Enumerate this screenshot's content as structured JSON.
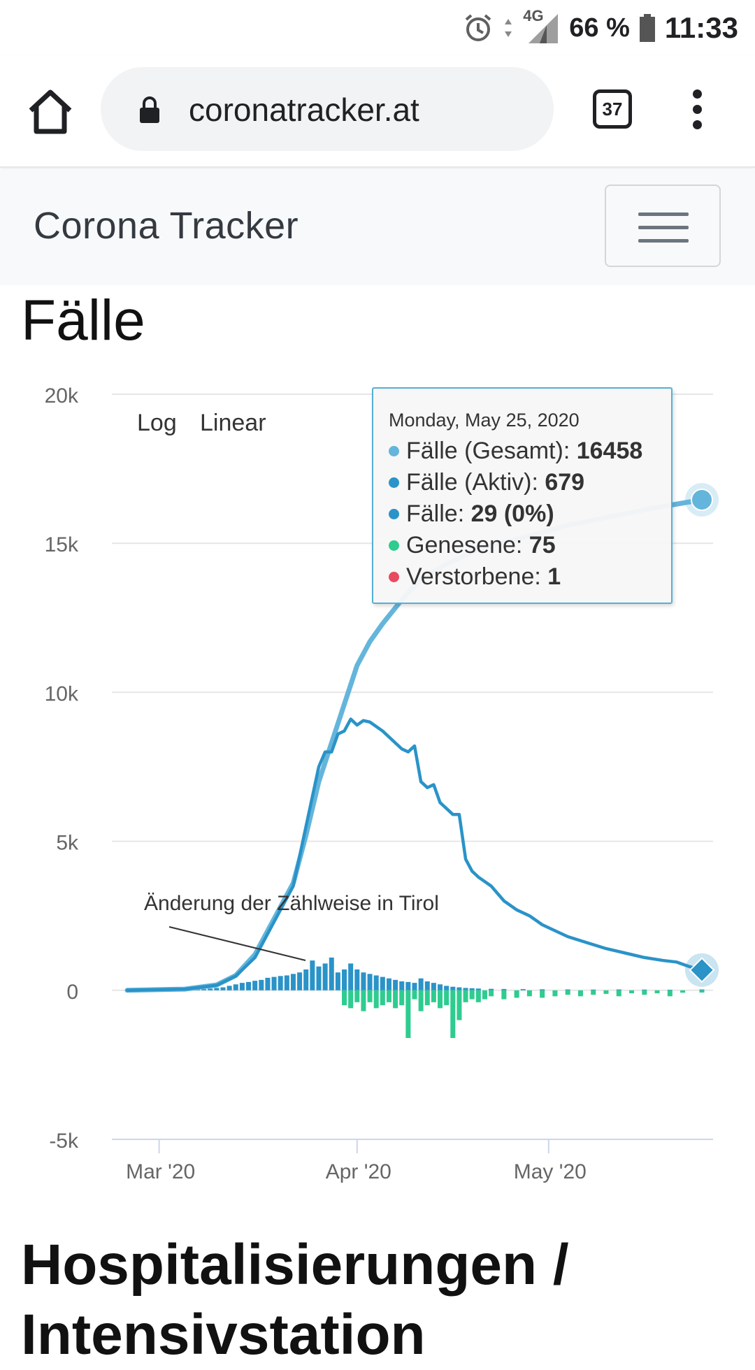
{
  "status_bar": {
    "network": "4G",
    "battery": "66 %",
    "time": "11:33"
  },
  "browser": {
    "url": "coronatracker.at",
    "tab_count": "37"
  },
  "navbar": {
    "brand": "Corona Tracker"
  },
  "page": {
    "title": "Fälle",
    "next_section_title": "Hospitalisierungen / Intensivstation"
  },
  "range_buttons": {
    "log": "Log",
    "linear": "Linear"
  },
  "annotation": "Änderung der Zählweise in Tirol",
  "tooltip": {
    "date": "Monday, May 25, 2020",
    "rows": [
      {
        "label": "Fälle (Gesamt): ",
        "value": "16458",
        "color": "#64b5db"
      },
      {
        "label": "Fälle (Aktiv): ",
        "value": "679",
        "color": "#2a93c8"
      },
      {
        "label": "Fälle: ",
        "value": "29 (0%)",
        "color": "#2a93c8"
      },
      {
        "label": "Genesene: ",
        "value": "75",
        "color": "#2ecc8f"
      },
      {
        "label": "Verstorbene: ",
        "value": "1",
        "color": "#e84a5f"
      }
    ]
  },
  "chart_data": {
    "type": "line",
    "y_ticks": [
      "20k",
      "15k",
      "10k",
      "5k",
      "0",
      "-5k"
    ],
    "x_ticks": [
      "Mar '20",
      "Apr '20",
      "May '20"
    ],
    "ylim": [
      -5000,
      20000
    ],
    "xlim": [
      "2020-02-25",
      "2020-05-25"
    ],
    "colors": {
      "total": "#64b5db",
      "active": "#2a93c8",
      "new": "#2a93c8",
      "recovered": "#2ecc8f",
      "deaths": "#e84a5f",
      "grid": "#e6e6e6"
    },
    "series": [
      {
        "name": "Fälle (Gesamt)",
        "points": [
          [
            "2020-02-25",
            0
          ],
          [
            "2020-03-05",
            40
          ],
          [
            "2020-03-10",
            180
          ],
          [
            "2020-03-13",
            500
          ],
          [
            "2020-03-16",
            1200
          ],
          [
            "2020-03-19",
            2400
          ],
          [
            "2020-03-22",
            3600
          ],
          [
            "2020-03-24",
            5200
          ],
          [
            "2020-03-26",
            7000
          ],
          [
            "2020-03-28",
            8300
          ],
          [
            "2020-03-30",
            9600
          ],
          [
            "2020-04-01",
            10900
          ],
          [
            "2020-04-03",
            11700
          ],
          [
            "2020-04-05",
            12300
          ],
          [
            "2020-04-08",
            13100
          ],
          [
            "2020-04-11",
            13800
          ],
          [
            "2020-04-15",
            14300
          ],
          [
            "2020-04-20",
            14800
          ],
          [
            "2020-04-27",
            15200
          ],
          [
            "2020-05-04",
            15600
          ],
          [
            "2020-05-12",
            15950
          ],
          [
            "2020-05-18",
            16200
          ],
          [
            "2020-05-25",
            16458
          ]
        ]
      },
      {
        "name": "Fälle (Aktiv)",
        "points": [
          [
            "2020-02-25",
            0
          ],
          [
            "2020-03-05",
            40
          ],
          [
            "2020-03-10",
            170
          ],
          [
            "2020-03-13",
            480
          ],
          [
            "2020-03-16",
            1100
          ],
          [
            "2020-03-19",
            2300
          ],
          [
            "2020-03-22",
            3500
          ],
          [
            "2020-03-24",
            5500
          ],
          [
            "2020-03-26",
            7500
          ],
          [
            "2020-03-27",
            8000
          ],
          [
            "2020-03-28",
            8000
          ],
          [
            "2020-03-29",
            8600
          ],
          [
            "2020-03-30",
            8700
          ],
          [
            "2020-03-31",
            9100
          ],
          [
            "2020-04-01",
            8900
          ],
          [
            "2020-04-02",
            9050
          ],
          [
            "2020-04-03",
            9000
          ],
          [
            "2020-04-05",
            8700
          ],
          [
            "2020-04-07",
            8300
          ],
          [
            "2020-04-08",
            8100
          ],
          [
            "2020-04-09",
            8000
          ],
          [
            "2020-04-10",
            8200
          ],
          [
            "2020-04-11",
            7000
          ],
          [
            "2020-04-12",
            6800
          ],
          [
            "2020-04-13",
            6900
          ],
          [
            "2020-04-14",
            6300
          ],
          [
            "2020-04-15",
            6100
          ],
          [
            "2020-04-16",
            5900
          ],
          [
            "2020-04-17",
            5900
          ],
          [
            "2020-04-18",
            4400
          ],
          [
            "2020-04-19",
            4000
          ],
          [
            "2020-04-20",
            3800
          ],
          [
            "2020-04-22",
            3500
          ],
          [
            "2020-04-24",
            3000
          ],
          [
            "2020-04-26",
            2700
          ],
          [
            "2020-04-28",
            2500
          ],
          [
            "2020-04-30",
            2200
          ],
          [
            "2020-05-02",
            2000
          ],
          [
            "2020-05-04",
            1800
          ],
          [
            "2020-05-07",
            1600
          ],
          [
            "2020-05-10",
            1400
          ],
          [
            "2020-05-13",
            1250
          ],
          [
            "2020-05-16",
            1100
          ],
          [
            "2020-05-19",
            1000
          ],
          [
            "2020-05-21",
            950
          ],
          [
            "2020-05-23",
            800
          ],
          [
            "2020-05-25",
            679
          ]
        ]
      }
    ],
    "bars": {
      "new_cases": [
        [
          "2020-03-07",
          30
        ],
        [
          "2020-03-08",
          40
        ],
        [
          "2020-03-09",
          60
        ],
        [
          "2020-03-10",
          80
        ],
        [
          "2020-03-11",
          100
        ],
        [
          "2020-03-12",
          150
        ],
        [
          "2020-03-13",
          200
        ],
        [
          "2020-03-14",
          250
        ],
        [
          "2020-03-15",
          280
        ],
        [
          "2020-03-16",
          320
        ],
        [
          "2020-03-17",
          350
        ],
        [
          "2020-03-18",
          420
        ],
        [
          "2020-03-19",
          450
        ],
        [
          "2020-03-20",
          480
        ],
        [
          "2020-03-21",
          500
        ],
        [
          "2020-03-22",
          550
        ],
        [
          "2020-03-23",
          600
        ],
        [
          "2020-03-24",
          700
        ],
        [
          "2020-03-25",
          1000
        ],
        [
          "2020-03-26",
          800
        ],
        [
          "2020-03-27",
          900
        ],
        [
          "2020-03-28",
          1100
        ],
        [
          "2020-03-29",
          600
        ],
        [
          "2020-03-30",
          700
        ],
        [
          "2020-03-31",
          900
        ],
        [
          "2020-04-01",
          700
        ],
        [
          "2020-04-02",
          600
        ],
        [
          "2020-04-03",
          550
        ],
        [
          "2020-04-04",
          500
        ],
        [
          "2020-04-05",
          450
        ],
        [
          "2020-04-06",
          400
        ],
        [
          "2020-04-07",
          350
        ],
        [
          "2020-04-08",
          300
        ],
        [
          "2020-04-09",
          280
        ],
        [
          "2020-04-10",
          250
        ],
        [
          "2020-04-11",
          400
        ],
        [
          "2020-04-12",
          300
        ],
        [
          "2020-04-13",
          250
        ],
        [
          "2020-04-14",
          200
        ],
        [
          "2020-04-15",
          150
        ],
        [
          "2020-04-16",
          120
        ],
        [
          "2020-04-17",
          100
        ],
        [
          "2020-04-18",
          80
        ],
        [
          "2020-04-19",
          70
        ],
        [
          "2020-04-20",
          60
        ],
        [
          "2020-04-22",
          50
        ],
        [
          "2020-04-24",
          45
        ],
        [
          "2020-04-27",
          40
        ],
        [
          "2020-04-30",
          35
        ],
        [
          "2020-05-04",
          30
        ],
        [
          "2020-05-08",
          25
        ],
        [
          "2020-05-12",
          30
        ],
        [
          "2020-05-16",
          25
        ],
        [
          "2020-05-20",
          20
        ],
        [
          "2020-05-25",
          29
        ]
      ],
      "recovered": [
        [
          "2020-03-30",
          -500
        ],
        [
          "2020-03-31",
          -600
        ],
        [
          "2020-04-01",
          -400
        ],
        [
          "2020-04-02",
          -700
        ],
        [
          "2020-04-03",
          -400
        ],
        [
          "2020-04-04",
          -600
        ],
        [
          "2020-04-05",
          -500
        ],
        [
          "2020-04-06",
          -400
        ],
        [
          "2020-04-07",
          -600
        ],
        [
          "2020-04-08",
          -500
        ],
        [
          "2020-04-09",
          -1600
        ],
        [
          "2020-04-10",
          -300
        ],
        [
          "2020-04-11",
          -700
        ],
        [
          "2020-04-12",
          -500
        ],
        [
          "2020-04-13",
          -400
        ],
        [
          "2020-04-14",
          -600
        ],
        [
          "2020-04-15",
          -500
        ],
        [
          "2020-04-16",
          -1600
        ],
        [
          "2020-04-17",
          -1000
        ],
        [
          "2020-04-18",
          -400
        ],
        [
          "2020-04-19",
          -300
        ],
        [
          "2020-04-20",
          -400
        ],
        [
          "2020-04-21",
          -300
        ],
        [
          "2020-04-22",
          -200
        ],
        [
          "2020-04-24",
          -300
        ],
        [
          "2020-04-26",
          -250
        ],
        [
          "2020-04-28",
          -200
        ],
        [
          "2020-04-30",
          -250
        ],
        [
          "2020-05-02",
          -200
        ],
        [
          "2020-05-04",
          -150
        ],
        [
          "2020-05-06",
          -200
        ],
        [
          "2020-05-08",
          -150
        ],
        [
          "2020-05-10",
          -120
        ],
        [
          "2020-05-12",
          -200
        ],
        [
          "2020-05-14",
          -100
        ],
        [
          "2020-05-16",
          -150
        ],
        [
          "2020-05-18",
          -100
        ],
        [
          "2020-05-20",
          -200
        ],
        [
          "2020-05-22",
          -80
        ],
        [
          "2020-05-25",
          -75
        ]
      ]
    }
  }
}
